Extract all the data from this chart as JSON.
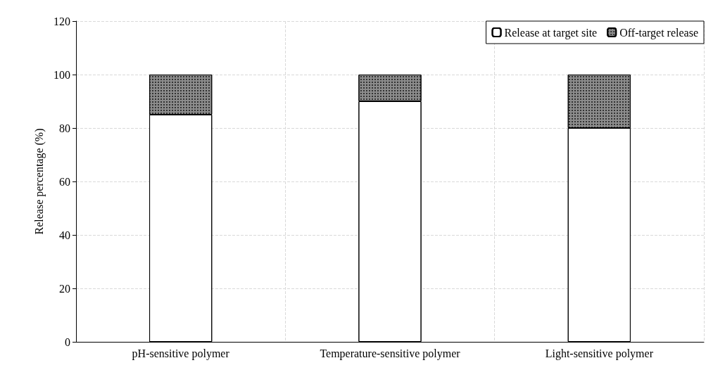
{
  "chart_data": {
    "type": "bar",
    "stacked": true,
    "ylabel": "Release percentage (%)",
    "categories": [
      "pH-sensitive polymer",
      "Temperature-sensitive polymer",
      "Light-sensitive polymer"
    ],
    "series": [
      {
        "name": "Release at target site",
        "color": "#ffffff",
        "values": [
          85,
          90,
          80
        ]
      },
      {
        "name": "Off-target release",
        "color": "#8c8c8c",
        "values": [
          15,
          10,
          20
        ]
      }
    ],
    "ylim": [
      0,
      120
    ],
    "yticks": [
      0,
      20,
      40,
      60,
      80,
      100,
      120
    ],
    "grid": true,
    "legend": "top right"
  }
}
